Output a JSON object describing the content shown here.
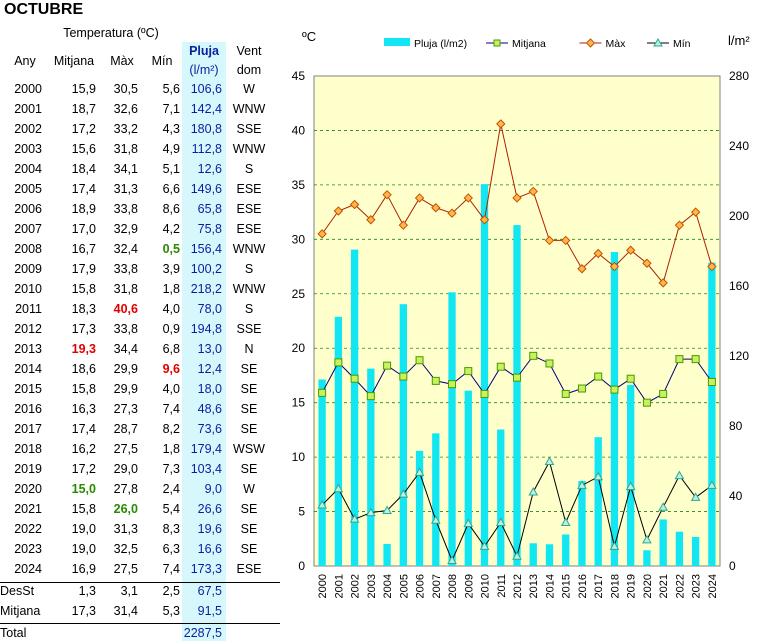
{
  "title": "OCTUBRE",
  "table": {
    "header": {
      "temperature_group": "Temperatura (ºC)",
      "any": "Any",
      "mitjana": "Mitjana",
      "max": "Màx",
      "min": "Mín",
      "pluja": "Pluja",
      "pluja_unit": "(l/m²)",
      "vent1": "Vent",
      "vent2": "dom"
    },
    "rows": [
      {
        "any": "2000",
        "mitjana": "15,9",
        "max": "30,5",
        "min": "5,6",
        "pluja": "106,6",
        "vent": "W",
        "hl": ""
      },
      {
        "any": "2001",
        "mitjana": "18,7",
        "max": "32,6",
        "min": "7,1",
        "pluja": "142,4",
        "vent": "WNW",
        "hl": ""
      },
      {
        "any": "2002",
        "mitjana": "17,2",
        "max": "33,2",
        "min": "4,3",
        "pluja": "180,8",
        "vent": "SSE",
        "hl": ""
      },
      {
        "any": "2003",
        "mitjana": "15,6",
        "max": "31,8",
        "min": "4,9",
        "pluja": "112,8",
        "vent": "WNW",
        "hl": ""
      },
      {
        "any": "2004",
        "mitjana": "18,4",
        "max": "34,1",
        "min": "5,1",
        "pluja": "12,6",
        "vent": "S",
        "hl": ""
      },
      {
        "any": "2005",
        "mitjana": "17,4",
        "max": "31,3",
        "min": "6,6",
        "pluja": "149,6",
        "vent": "ESE",
        "hl": ""
      },
      {
        "any": "2006",
        "mitjana": "18,9",
        "max": "33,8",
        "min": "8,6",
        "pluja": "65,8",
        "vent": "ESE",
        "hl": ""
      },
      {
        "any": "2007",
        "mitjana": "17,0",
        "max": "32,9",
        "min": "4,2",
        "pluja": "75,8",
        "vent": "ESE",
        "hl": ""
      },
      {
        "any": "2008",
        "mitjana": "16,7",
        "max": "32,4",
        "min": "0,5",
        "pluja": "156,4",
        "vent": "WNW",
        "hl": "min-green"
      },
      {
        "any": "2009",
        "mitjana": "17,9",
        "max": "33,8",
        "min": "3,9",
        "pluja": "100,2",
        "vent": "S",
        "hl": ""
      },
      {
        "any": "2010",
        "mitjana": "15,8",
        "max": "31,8",
        "min": "1,8",
        "pluja": "218,2",
        "vent": "WNW",
        "hl": ""
      },
      {
        "any": "2011",
        "mitjana": "18,3",
        "max": "40,6",
        "min": "4,0",
        "pluja": "78,0",
        "vent": "S",
        "hl": "max-red"
      },
      {
        "any": "2012",
        "mitjana": "17,3",
        "max": "33,8",
        "min": "0,9",
        "pluja": "194,8",
        "vent": "SSE",
        "hl": ""
      },
      {
        "any": "2013",
        "mitjana": "19,3",
        "max": "34,4",
        "min": "6,8",
        "pluja": "13,0",
        "vent": "N",
        "hl": "mitjana-red"
      },
      {
        "any": "2014",
        "mitjana": "18,6",
        "max": "29,9",
        "min": "9,6",
        "pluja": "12,4",
        "vent": "SE",
        "hl": "min-red"
      },
      {
        "any": "2015",
        "mitjana": "15,8",
        "max": "29,9",
        "min": "4,0",
        "pluja": "18,0",
        "vent": "SE",
        "hl": ""
      },
      {
        "any": "2016",
        "mitjana": "16,3",
        "max": "27,3",
        "min": "7,4",
        "pluja": "48,6",
        "vent": "SE",
        "hl": ""
      },
      {
        "any": "2017",
        "mitjana": "17,4",
        "max": "28,7",
        "min": "8,2",
        "pluja": "73,6",
        "vent": "SE",
        "hl": ""
      },
      {
        "any": "2018",
        "mitjana": "16,2",
        "max": "27,5",
        "min": "1,8",
        "pluja": "179,4",
        "vent": "WSW",
        "hl": ""
      },
      {
        "any": "2019",
        "mitjana": "17,2",
        "max": "29,0",
        "min": "7,3",
        "pluja": "103,4",
        "vent": "SE",
        "hl": ""
      },
      {
        "any": "2020",
        "mitjana": "15,0",
        "max": "27,8",
        "min": "2,4",
        "pluja": "9,0",
        "vent": "W",
        "hl": "mitjana-green"
      },
      {
        "any": "2021",
        "mitjana": "15,8",
        "max": "26,0",
        "min": "5,4",
        "pluja": "26,6",
        "vent": "SE",
        "hl": "max-green"
      },
      {
        "any": "2022",
        "mitjana": "19,0",
        "max": "31,3",
        "min": "8,3",
        "pluja": "19,6",
        "vent": "SE",
        "hl": ""
      },
      {
        "any": "2023",
        "mitjana": "19,0",
        "max": "32,5",
        "min": "6,3",
        "pluja": "16,6",
        "vent": "SE",
        "hl": ""
      },
      {
        "any": "2024",
        "mitjana": "16,9",
        "max": "27,5",
        "min": "7,4",
        "pluja": "173,3",
        "vent": "ESE",
        "hl": ""
      }
    ],
    "desst": {
      "label": "DesSt",
      "mitjana": "1,3",
      "max": "3,1",
      "min": "2,5",
      "pluja": "67,5"
    },
    "mitjana_row": {
      "label": "Mitjana",
      "mitjana": "17,3",
      "max": "31,4",
      "min": "5,3",
      "pluja": "91,5"
    },
    "total": {
      "label": "Total",
      "pluja": "2287,5"
    }
  },
  "chart_data": {
    "type": "bar",
    "left_unit": "ºC",
    "right_unit": "l/m²",
    "y_left_lim": [
      0,
      45
    ],
    "y_left_ticks": [
      0,
      5,
      10,
      15,
      20,
      25,
      30,
      35,
      40,
      45
    ],
    "y_right_lim": [
      0,
      280
    ],
    "y_right_ticks": [
      0,
      40,
      80,
      120,
      160,
      200,
      240,
      280
    ],
    "grid": true,
    "legend_position": "top",
    "categories": [
      "2000",
      "2001",
      "2002",
      "2003",
      "2004",
      "2005",
      "2006",
      "2007",
      "2008",
      "2009",
      "2010",
      "2011",
      "2012",
      "2013",
      "2014",
      "2015",
      "2016",
      "2017",
      "2018",
      "2019",
      "2020",
      "2021",
      "2022",
      "2023",
      "2024"
    ],
    "series": [
      {
        "name": "Pluja (l/m2)",
        "kind": "bar",
        "axis": "right",
        "color": "#11e6f2",
        "values": [
          106.6,
          142.4,
          180.8,
          112.8,
          12.6,
          149.6,
          65.8,
          75.8,
          156.4,
          100.2,
          218.2,
          78.0,
          194.8,
          13.0,
          12.4,
          18.0,
          48.6,
          73.6,
          179.4,
          103.4,
          9.0,
          26.6,
          19.6,
          16.6,
          173.3
        ]
      },
      {
        "name": "Mitjana",
        "kind": "line",
        "axis": "left",
        "color": "#000080",
        "marker": "square",
        "marker_fill": "#c8f060",
        "marker_edge": "#4a9a00",
        "values": [
          15.9,
          18.7,
          17.2,
          15.6,
          18.4,
          17.4,
          18.9,
          17.0,
          16.7,
          17.9,
          15.8,
          18.3,
          17.3,
          19.3,
          18.6,
          15.8,
          16.3,
          17.4,
          16.2,
          17.2,
          15.0,
          15.8,
          19.0,
          19.0,
          16.9
        ]
      },
      {
        "name": "Màx",
        "kind": "line",
        "axis": "left",
        "color": "#b02000",
        "marker": "diamond",
        "marker_fill": "#ffb84a",
        "marker_edge": "#c85000",
        "values": [
          30.5,
          32.6,
          33.2,
          31.8,
          34.1,
          31.3,
          33.8,
          32.9,
          32.4,
          33.8,
          31.8,
          40.6,
          33.8,
          34.4,
          29.9,
          29.9,
          27.3,
          28.7,
          27.5,
          29.0,
          27.8,
          26.0,
          31.3,
          32.5,
          27.5
        ]
      },
      {
        "name": "Mín",
        "kind": "line",
        "axis": "left",
        "color": "#000000",
        "marker": "triangle",
        "marker_fill": "#b8f0e4",
        "marker_edge": "#30a890",
        "values": [
          5.6,
          7.1,
          4.3,
          4.9,
          5.1,
          6.6,
          8.6,
          4.2,
          0.5,
          3.9,
          1.8,
          4.0,
          0.9,
          6.8,
          9.6,
          4.0,
          7.4,
          8.2,
          1.8,
          7.3,
          2.4,
          5.4,
          8.3,
          6.3,
          7.4
        ]
      }
    ]
  }
}
